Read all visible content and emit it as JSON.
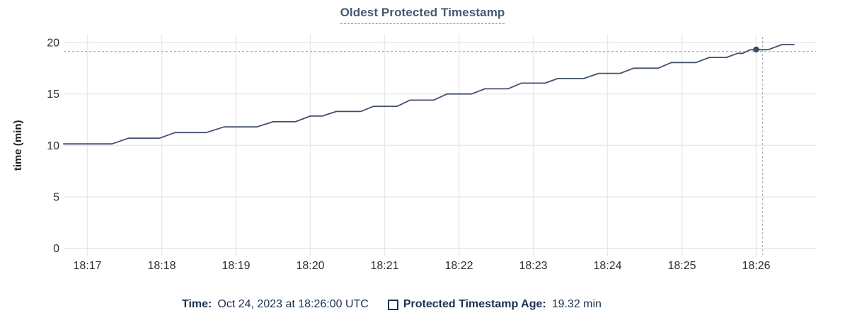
{
  "title": "Oldest Protected Timestamp",
  "legend": {
    "time_label": "Time:",
    "time_value": "Oct 24, 2023 at 18:26:00 UTC",
    "series_label": "Protected Timestamp Age:",
    "series_value": "19.32 min"
  },
  "colors": {
    "title": "#475872",
    "title_underline": "#8494b8",
    "grid": "#e9e9e9",
    "tick_text": "#2b2f36",
    "axis_label_text": "#1c1f24",
    "line": "#42506c",
    "dot": "#3e4c68",
    "crosshair": "#a3b9c6",
    "legend_text": "#1b3150"
  },
  "chart_data": {
    "type": "line",
    "title": "Oldest Protected Timestamp",
    "xlabel": "",
    "ylabel": "time (min)",
    "ylim": [
      0,
      20
    ],
    "y_ticks": [
      0,
      5,
      10,
      15,
      20
    ],
    "x_ticks": [
      "18:17",
      "18:18",
      "18:19",
      "18:20",
      "18:21",
      "18:22",
      "18:23",
      "18:24",
      "18:25",
      "18:26"
    ],
    "x_range_minutes": [
      -0.36,
      9.8
    ],
    "grid": true,
    "legend_position": "bottom",
    "series": [
      {
        "name": "Protected Timestamp Age",
        "unit": "min",
        "points": [
          [
            -0.32,
            10.15
          ],
          [
            0.33,
            10.15
          ],
          [
            0.55,
            10.7
          ],
          [
            0.97,
            10.7
          ],
          [
            1.18,
            11.25
          ],
          [
            1.6,
            11.25
          ],
          [
            1.84,
            11.8
          ],
          [
            2.28,
            11.8
          ],
          [
            2.5,
            12.3
          ],
          [
            2.8,
            12.3
          ],
          [
            3.0,
            12.85
          ],
          [
            3.16,
            12.85
          ],
          [
            3.35,
            13.3
          ],
          [
            3.68,
            13.3
          ],
          [
            3.85,
            13.8
          ],
          [
            4.17,
            13.8
          ],
          [
            4.34,
            14.4
          ],
          [
            4.66,
            14.4
          ],
          [
            4.84,
            15.0
          ],
          [
            5.17,
            15.0
          ],
          [
            5.35,
            15.5
          ],
          [
            5.66,
            15.5
          ],
          [
            5.84,
            16.05
          ],
          [
            6.16,
            16.05
          ],
          [
            6.33,
            16.5
          ],
          [
            6.68,
            16.5
          ],
          [
            6.88,
            17.0
          ],
          [
            7.17,
            17.0
          ],
          [
            7.35,
            17.5
          ],
          [
            7.68,
            17.5
          ],
          [
            7.86,
            18.05
          ],
          [
            8.19,
            18.05
          ],
          [
            8.37,
            18.55
          ],
          [
            8.6,
            18.55
          ],
          [
            8.75,
            18.95
          ],
          [
            8.82,
            18.95
          ],
          [
            8.92,
            19.3
          ],
          [
            9.16,
            19.3
          ],
          [
            9.35,
            19.8
          ],
          [
            9.51,
            19.8
          ]
        ]
      }
    ],
    "hover": {
      "x_minutes": 9.0,
      "x_label": "18:26",
      "value": 19.32,
      "crosshair_x_minutes": 9.086,
      "time_text": "Oct 24, 2023 at 18:26:00 UTC",
      "value_text": "19.32 min"
    }
  }
}
